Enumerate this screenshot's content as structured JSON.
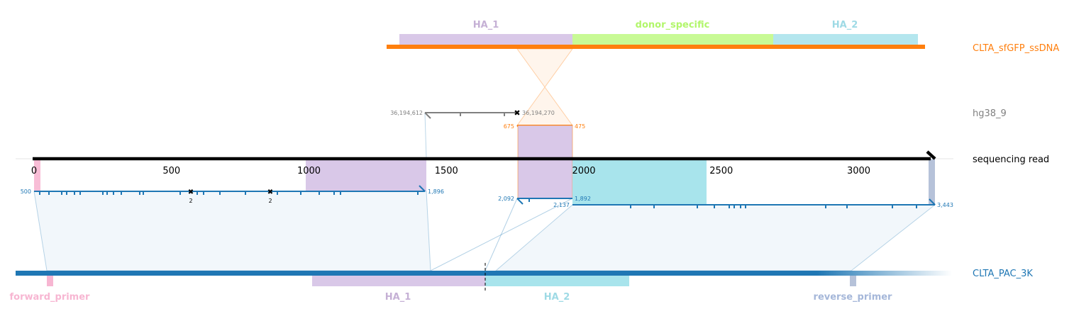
{
  "tracks": {
    "donor": {
      "name": "CLTA_sfGFP_ssDNA",
      "color": "#ff7f0e"
    },
    "genome": {
      "name": "hg38_9",
      "color": "#808080"
    },
    "read": {
      "name": "sequencing read",
      "color": "#000000"
    },
    "reference": {
      "name": "CLTA_PAC_3K",
      "color": "#1f77b4"
    }
  },
  "features": {
    "donor_ha1": {
      "label": "HA_1",
      "color": "#c5b0d5"
    },
    "donor_specific": {
      "label": "donor_specific",
      "color": "#b2f66b"
    },
    "donor_ha2": {
      "label": "HA_2",
      "color": "#9edae5"
    },
    "forward_primer": {
      "label": "forward_primer",
      "color": "#f7b6d2"
    },
    "ref_ha1": {
      "label": "HA_1",
      "color": "#c5b0d5"
    },
    "ref_ha2": {
      "label": "HA_2",
      "color": "#9edae5"
    },
    "reverse_primer": {
      "label": "reverse_primer",
      "color": "#a5b7d9"
    }
  },
  "read_axis": {
    "ticks": [
      "0",
      "500",
      "1000",
      "1500",
      "2000",
      "2500",
      "3000"
    ]
  },
  "alignments": {
    "ref_left": {
      "start": "500",
      "end": "1,896",
      "marks": [
        "2",
        "2"
      ]
    },
    "ref_right": {
      "start": "2,137",
      "end": "3,443"
    },
    "ref_mid": {
      "start": "2,092",
      "end": "1,892"
    },
    "donor": {
      "start": "675",
      "end": "475"
    },
    "genome": {
      "start": "36,194,612",
      "end": "36,194,270"
    }
  }
}
